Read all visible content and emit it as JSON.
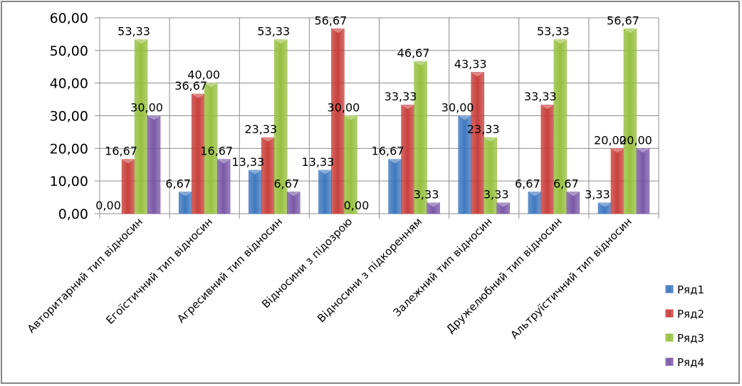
{
  "chart_data": {
    "type": "bar",
    "title": "",
    "xlabel": "",
    "ylabel": "",
    "ylim": [
      0,
      60
    ],
    "yticks": [
      "0,00",
      "10,00",
      "20,00",
      "30,00",
      "40,00",
      "50,00",
      "60,00"
    ],
    "grid": true,
    "legend_position": "right",
    "categories": [
      "Авторитарний тип відносин",
      "Егоїстичний тип відносин",
      "Агресивний тип відносин",
      "Відносини з підозрою",
      "Відносини з підкоренням",
      "Залежний тип відносин",
      "Дружелюбний тип відносин",
      "Альтруїстичний тип відносин"
    ],
    "series": [
      {
        "name": "Ряд1",
        "color": "#3f78c0",
        "values": [
          0.0,
          6.67,
          13.33,
          13.33,
          16.67,
          30.0,
          6.67,
          3.33
        ],
        "labels": [
          "0,00",
          "6,67",
          "13,33",
          "13,33",
          "16,67",
          "30,00",
          "6,67",
          "3,33"
        ]
      },
      {
        "name": "Ряд2",
        "color": "#c8403c",
        "values": [
          16.67,
          36.67,
          23.33,
          56.67,
          33.33,
          43.33,
          33.33,
          20.0
        ],
        "labels": [
          "16,67",
          "36,67",
          "23,33",
          "56,67",
          "33,33",
          "43,33",
          "33,33",
          "20,00"
        ]
      },
      {
        "name": "Ряд3",
        "color": "#98c040",
        "values": [
          53.33,
          40.0,
          53.33,
          30.0,
          46.67,
          23.33,
          53.33,
          56.67
        ],
        "labels": [
          "53,33",
          "40,00",
          "53,33",
          "30,00",
          "46,67",
          "23,33",
          "53,33",
          "56,67"
        ]
      },
      {
        "name": "Ряд4",
        "color": "#7a58a8",
        "values": [
          30.0,
          16.67,
          6.67,
          0.0,
          3.33,
          3.33,
          6.67,
          20.0
        ],
        "labels": [
          "30,00",
          "16,67",
          "6,67",
          "0,00",
          "3,33",
          "3,33",
          "6,67",
          "20,00"
        ]
      }
    ]
  }
}
